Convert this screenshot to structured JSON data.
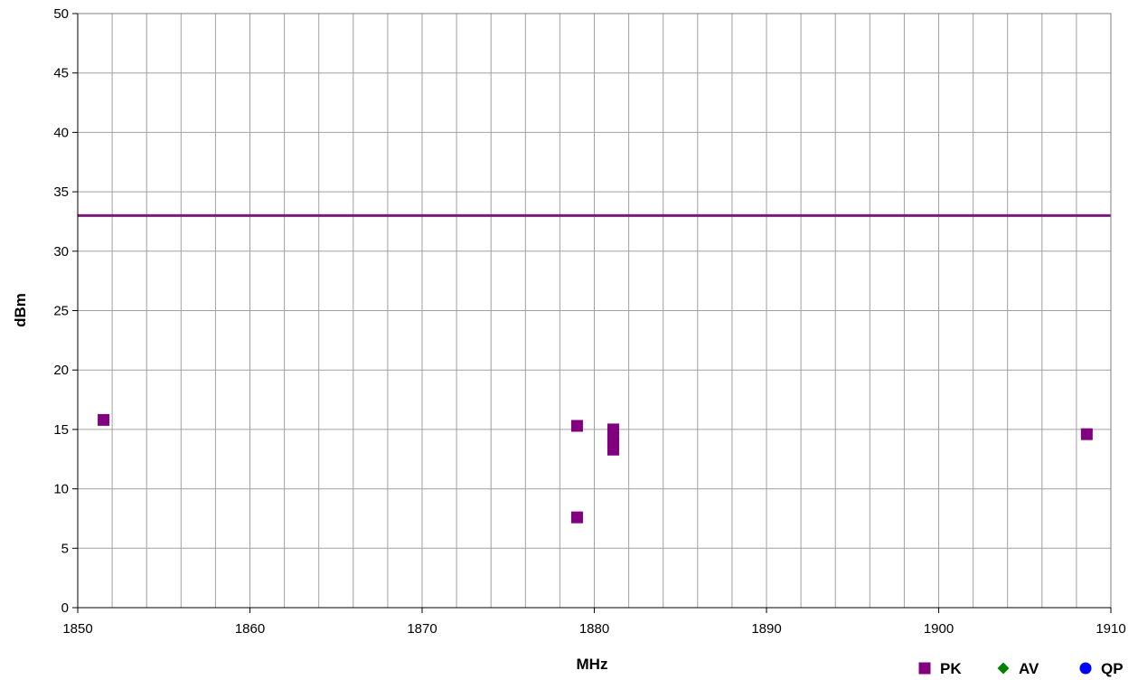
{
  "chart_data": {
    "type": "scatter",
    "title": "",
    "xlabel": "MHz",
    "ylabel": "dBm",
    "xlim": [
      1850,
      1910
    ],
    "ylim": [
      0,
      50
    ],
    "x_ticks": [
      1850,
      1860,
      1870,
      1880,
      1890,
      1900,
      1910
    ],
    "x_minor_step": 2,
    "y_ticks": [
      0,
      5,
      10,
      15,
      20,
      25,
      30,
      35,
      40,
      45,
      50
    ],
    "grid": true,
    "legend_position": "bottom-right",
    "limit_line": {
      "value": 33,
      "color": "#7B1A7B"
    },
    "series": [
      {
        "name": "PK",
        "marker": "square",
        "color": "#800080",
        "points": [
          {
            "x": 1851.5,
            "y": 15.8
          },
          {
            "x": 1879.0,
            "y": 15.3
          },
          {
            "x": 1879.0,
            "y": 7.6
          },
          {
            "x": 1881.1,
            "y": 15.0
          },
          {
            "x": 1881.1,
            "y": 14.4
          },
          {
            "x": 1881.1,
            "y": 13.8
          },
          {
            "x": 1881.1,
            "y": 13.3
          },
          {
            "x": 1908.6,
            "y": 14.6
          }
        ]
      },
      {
        "name": "AV",
        "marker": "diamond",
        "color": "#008000",
        "points": []
      },
      {
        "name": "QP",
        "marker": "circle",
        "color": "#0000FF",
        "points": []
      }
    ]
  }
}
